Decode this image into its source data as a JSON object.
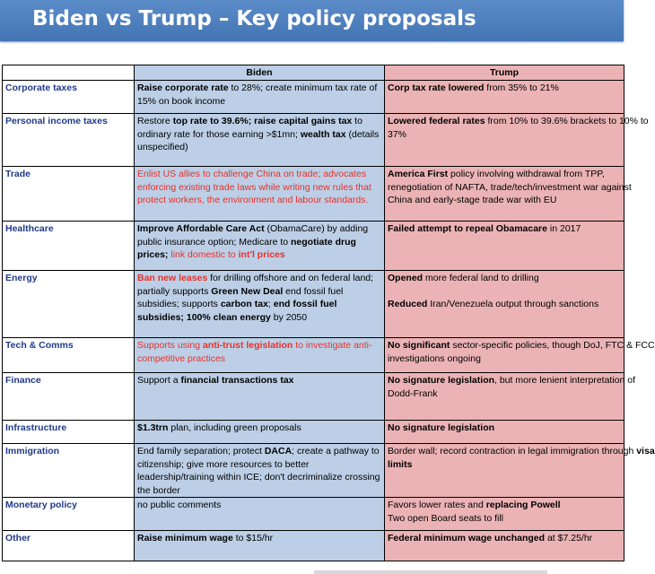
{
  "title": "Biden vs Trump – Key policy proposals",
  "header": {
    "category": "",
    "biden": "Biden",
    "trump": "Trump"
  },
  "colors": {
    "title_bar": "#4a7bbf",
    "biden_cell": "#bccfe6",
    "trump_cell": "#ebb3b5",
    "category_text": "#1f3a8a",
    "highlight_red": "#e8302a"
  },
  "rows": [
    {
      "category": "Corporate taxes",
      "biden": [
        {
          "t": "Raise corporate rate",
          "s": "b"
        },
        {
          "t": " to 28%; create minimum tax rate of 15% on book income"
        }
      ],
      "trump": [
        {
          "t": "Corp tax rate lowered",
          "s": "b"
        },
        {
          "t": " from 35% to 21%"
        }
      ]
    },
    {
      "category": "Personal income taxes",
      "biden": [
        {
          "t": "Restore "
        },
        {
          "t": "top rate to 39.6%; raise capital gains tax",
          "s": "b"
        },
        {
          "t": " to ordinary rate for those earning >$1mn; "
        },
        {
          "t": "wealth tax",
          "s": "b"
        },
        {
          "t": " (details unspecified)"
        }
      ],
      "trump": [
        {
          "t": "Lowered federal rates",
          "s": "b"
        },
        {
          "t": " from 10% to 39.6% brackets to 10% to"
        },
        {
          "br": true
        },
        {
          "t": "37%"
        }
      ]
    },
    {
      "category": "Trade",
      "biden": [
        {
          "t": "Enlist US allies to challenge China on trade; advocates enforcing existing trade laws while writing new rules that protect workers, the environment and labour standards.",
          "s": "red"
        }
      ],
      "trump": [
        {
          "t": "America First",
          "s": "b"
        },
        {
          "t": " policy involving withdrawal from TPP,"
        },
        {
          "br": true
        },
        {
          "t": "renegotiation of NAFTA, trade/tech/investment war against"
        },
        {
          "br": true
        },
        {
          "t": "China and early-stage trade war with EU"
        }
      ]
    },
    {
      "category": "Healthcare",
      "biden": [
        {
          "t": "Improve Affordable Care Act",
          "s": "b"
        },
        {
          "t": " (ObamaCare) by adding public insurance option; Medicare to "
        },
        {
          "t": "negotiate drug prices;",
          "s": "b"
        },
        {
          "t": " link domestic to ",
          "s": "red"
        },
        {
          "t": "int'l prices",
          "s": "red b"
        }
      ],
      "trump": [
        {
          "t": "Failed attempt to repeal Obamacare",
          "s": "b"
        },
        {
          "t": " in 2017"
        }
      ]
    },
    {
      "category": "Energy",
      "biden": [
        {
          "t": "Ban new leases",
          "s": "red b"
        },
        {
          "t": " for drilling offshore and  on federal land; partially supports "
        },
        {
          "t": "Green New Deal",
          "s": "b"
        },
        {
          "t": " end fossil fuel subsidies; supports "
        },
        {
          "t": "carbon tax",
          "s": "b"
        },
        {
          "t": "; "
        },
        {
          "t": "end fossil fuel subsidies; 100% clean energy",
          "s": "b"
        },
        {
          "t": " by 2050"
        }
      ],
      "trump": [
        {
          "t": "Opened",
          "s": "b"
        },
        {
          "t": " more federal land to drilling"
        },
        {
          "br": true
        },
        {
          "br": true
        },
        {
          "t": "Reduced",
          "s": "b"
        },
        {
          "t": " Iran/Venezuela output through sanctions"
        }
      ]
    },
    {
      "category": "Tech & Comms",
      "biden": [
        {
          "t": "Supports using ",
          "s": "red"
        },
        {
          "t": "anti-trust legislation",
          "s": "red b"
        },
        {
          "t": " to investigate anti-competitive practices",
          "s": "red"
        }
      ],
      "trump": [
        {
          "t": "No significant",
          "s": "b"
        },
        {
          "t": " sector-specific policies, though DoJ, FTC & FCC"
        },
        {
          "br": true
        },
        {
          "t": "investigations ongoing"
        }
      ]
    },
    {
      "category": "Finance",
      "biden": [
        {
          "t": "Support a "
        },
        {
          "t": "financial transactions tax",
          "s": "b"
        }
      ],
      "trump": [
        {
          "t": "No signature legislation",
          "s": "b"
        },
        {
          "t": ", but more lenient interpretation of"
        },
        {
          "br": true
        },
        {
          "t": "Dodd-Frank"
        }
      ]
    },
    {
      "category": "Infrastructure",
      "biden": [
        {
          "t": "$1.3trn",
          "s": "b"
        },
        {
          "t": " plan, including green proposals"
        }
      ],
      "trump": [
        {
          "t": "No signature legislation",
          "s": "b"
        }
      ]
    },
    {
      "category": "Immigration",
      "biden": [
        {
          "t": "End family separation; protect "
        },
        {
          "t": "DACA",
          "s": "b"
        },
        {
          "t": "; create a pathway to citizenship; give more resources to better leadership/training within ICE; don't decriminalize crossing the border"
        }
      ],
      "trump": [
        {
          "t": "Border wall; record contraction in legal immigration through "
        },
        {
          "t": "visa",
          "s": "b"
        },
        {
          "br": true
        },
        {
          "t": "limits",
          "s": "b"
        }
      ]
    },
    {
      "category": "Monetary policy",
      "biden": [
        {
          "t": "no public comments"
        }
      ],
      "trump": [
        {
          "t": "Favors lower rates and "
        },
        {
          "t": "replacing Powell",
          "s": "b"
        },
        {
          "br": true
        },
        {
          "t": "Two open Board seats to fill"
        }
      ]
    },
    {
      "category": "Other",
      "biden": [
        {
          "t": "Raise minimum wage",
          "s": "b"
        },
        {
          "t": " to $15/hr"
        }
      ],
      "trump": [
        {
          "t": "Federal minimum wage unchanged",
          "s": "b"
        },
        {
          "t": " at $7.25/hr"
        }
      ]
    }
  ]
}
